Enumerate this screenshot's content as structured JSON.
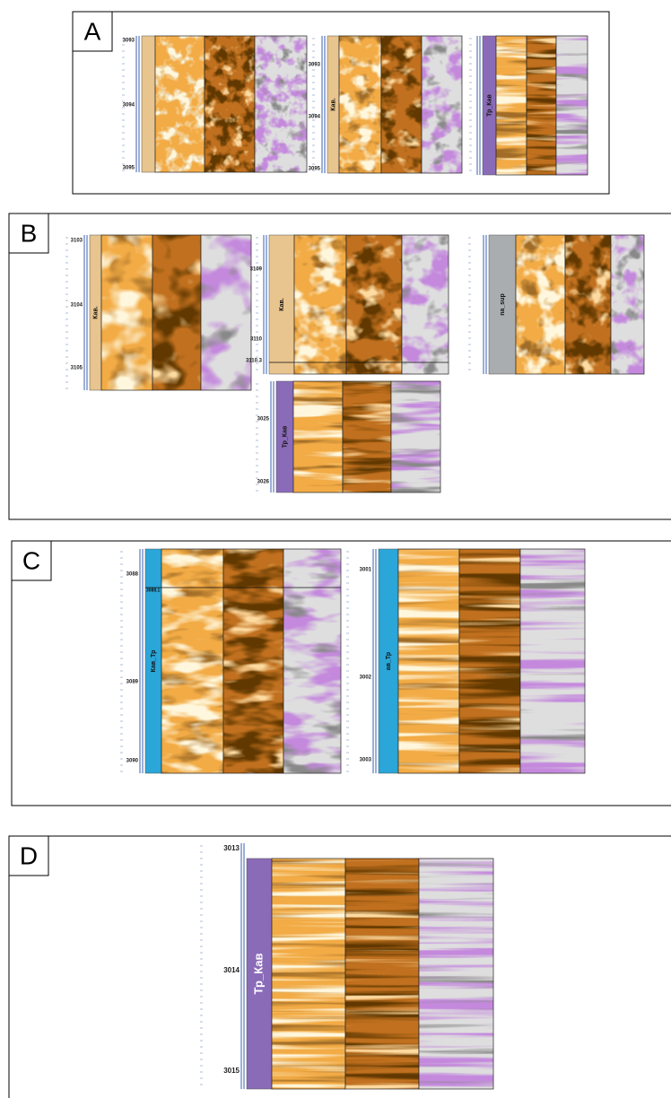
{
  "panels": [
    {
      "label": "A",
      "logs": [
        {
          "depths": [
            3093,
            3094,
            3095
          ]
        },
        {
          "depths": [
            3093,
            3094,
            3095
          ],
          "track": "Кав."
        },
        {
          "track": "Тр_Кав"
        }
      ]
    },
    {
      "label": "B",
      "logs": [
        {
          "depths": [
            3103,
            3104,
            3105
          ],
          "track": "Кав."
        },
        {
          "depths": [
            3109,
            3110,
            3110.3
          ],
          "track": "Кав."
        },
        {
          "depths": [
            3025,
            3026
          ],
          "track": "Тр_Кав"
        },
        {
          "track": "na_sup"
        }
      ]
    },
    {
      "label": "C",
      "logs": [
        {
          "depths": [
            3088,
            3089,
            3090
          ],
          "track": "Кав_Тр",
          "marker": 3088.1
        },
        {
          "depths": [
            3001,
            3002,
            3003
          ],
          "track": "ав_Тр"
        }
      ]
    },
    {
      "label": "D",
      "logs": [
        {
          "depths": [
            3013,
            3014,
            3015
          ],
          "track": "Тр_Кав"
        }
      ]
    }
  ]
}
